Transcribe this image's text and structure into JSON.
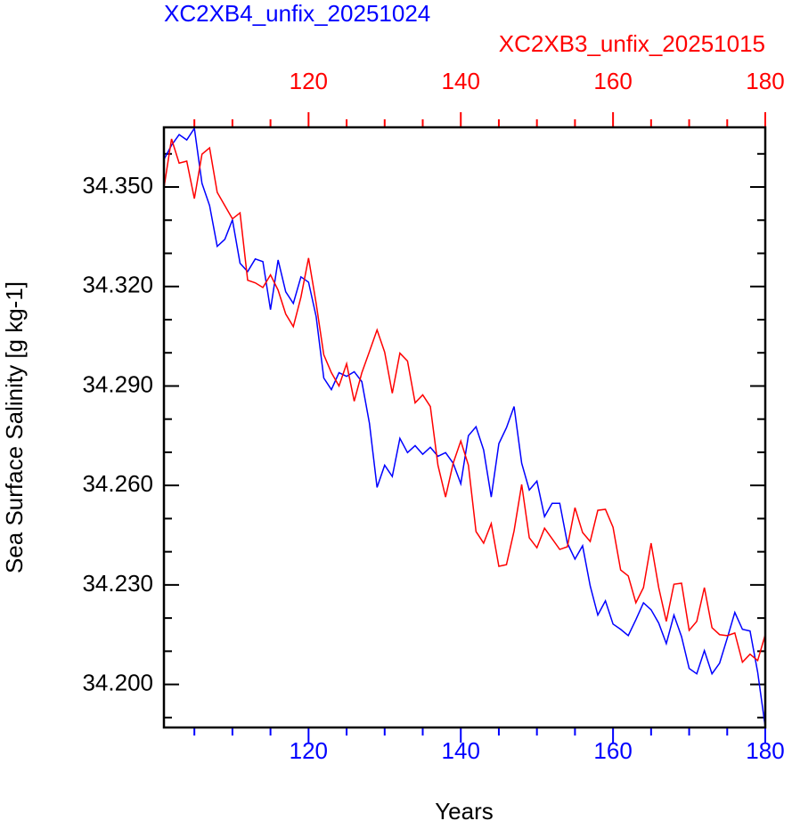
{
  "chart_data": {
    "type": "line",
    "xlabel": "Years",
    "ylabel": "Sea Surface Salinity [g kg-1]",
    "x": [
      101,
      102,
      103,
      104,
      105,
      106,
      107,
      108,
      109,
      110,
      111,
      112,
      113,
      114,
      115,
      116,
      117,
      118,
      119,
      120,
      121,
      122,
      123,
      124,
      125,
      126,
      127,
      128,
      129,
      130,
      131,
      132,
      133,
      134,
      135,
      136,
      137,
      138,
      139,
      140,
      141,
      142,
      143,
      144,
      145,
      146,
      147,
      148,
      149,
      150,
      151,
      152,
      153,
      154,
      155,
      156,
      157,
      158,
      159,
      160,
      161,
      162,
      163,
      164,
      165,
      166,
      167,
      168,
      169,
      170,
      171,
      172,
      173,
      174,
      175,
      176,
      177,
      178,
      179,
      180
    ],
    "xlim": [
      101,
      180
    ],
    "xticks": [
      120,
      140,
      160,
      180
    ],
    "xminorticks": [
      105,
      110,
      115,
      125,
      130,
      135,
      145,
      150,
      155,
      165,
      170,
      175
    ],
    "x2lim": [
      101,
      180
    ],
    "x2ticks": [
      120,
      140,
      160,
      180
    ],
    "x2minorticks": [
      105,
      110,
      115,
      125,
      130,
      135,
      145,
      150,
      155,
      165,
      170,
      175
    ],
    "ylim": [
      34.187,
      34.368
    ],
    "yticks": [
      {
        "value": 34.2,
        "label": "34.200"
      },
      {
        "value": 34.23,
        "label": "34.230"
      },
      {
        "value": 34.26,
        "label": "34.260"
      },
      {
        "value": 34.29,
        "label": "34.290"
      },
      {
        "value": 34.32,
        "label": "34.320"
      },
      {
        "value": 34.35,
        "label": "34.350"
      }
    ],
    "yminorticks": [
      34.19,
      34.21,
      34.22,
      34.24,
      34.25,
      34.27,
      34.28,
      34.3,
      34.31,
      34.33,
      34.34,
      34.36
    ],
    "series": [
      {
        "name": "XC2XB4_unfix_20251024",
        "color": "#0000ff",
        "axis": "x",
        "values": [
          34.3583,
          34.3626,
          34.3658,
          34.3642,
          34.3677,
          34.3511,
          34.3444,
          34.3321,
          34.3342,
          34.3401,
          34.327,
          34.3245,
          34.3283,
          34.3275,
          34.313,
          34.328,
          34.3184,
          34.3149,
          34.3229,
          34.3213,
          34.3109,
          34.2924,
          34.2889,
          34.294,
          34.2929,
          34.2943,
          34.2913,
          34.2787,
          34.2594,
          34.2661,
          34.2627,
          34.2742,
          34.2699,
          34.272,
          34.2694,
          34.2715,
          34.2688,
          34.2699,
          34.2667,
          34.2605,
          34.275,
          34.2777,
          34.2707,
          34.2565,
          34.2726,
          34.2774,
          34.2838,
          34.2667,
          34.2586,
          34.2613,
          34.2506,
          34.2546,
          34.2546,
          34.2426,
          34.2378,
          34.2418,
          34.2297,
          34.2209,
          34.2252,
          34.2182,
          34.2166,
          34.2147,
          34.2195,
          34.2246,
          34.2225,
          34.2185,
          34.2123,
          34.2209,
          34.2144,
          34.2048,
          34.2032,
          34.2102,
          34.2032,
          34.2064,
          34.2139,
          34.2217,
          34.2166,
          34.2161,
          34.2037,
          34.1871
        ]
      },
      {
        "name": "XC2XB3_unfix_20251015",
        "color": "#ff0000",
        "axis": "x2",
        "values": [
          34.3497,
          34.3645,
          34.3572,
          34.3578,
          34.3465,
          34.3599,
          34.3618,
          34.3484,
          34.3444,
          34.3404,
          34.3422,
          34.3219,
          34.3211,
          34.3197,
          34.3235,
          34.3189,
          34.3117,
          34.3079,
          34.3168,
          34.3286,
          34.3149,
          34.2994,
          34.294,
          34.29,
          34.2967,
          34.2854,
          34.294,
          34.3004,
          34.3069,
          34.3002,
          34.2878,
          34.2999,
          34.2975,
          34.2849,
          34.2873,
          34.2838,
          34.2661,
          34.2565,
          34.2667,
          34.2734,
          34.2661,
          34.2461,
          34.2426,
          34.2485,
          34.2356,
          34.2361,
          34.2463,
          34.2603,
          34.2442,
          34.2412,
          34.2471,
          34.2439,
          34.2407,
          34.2415,
          34.2533,
          34.2458,
          34.2431,
          34.2525,
          34.2528,
          34.2474,
          34.2345,
          34.2327,
          34.2246,
          34.2292,
          34.2426,
          34.2292,
          34.219,
          34.2302,
          34.2305,
          34.2163,
          34.219,
          34.2292,
          34.2171,
          34.215,
          34.2147,
          34.2155,
          34.2067,
          34.2091,
          34.2072,
          34.215
        ]
      }
    ]
  }
}
